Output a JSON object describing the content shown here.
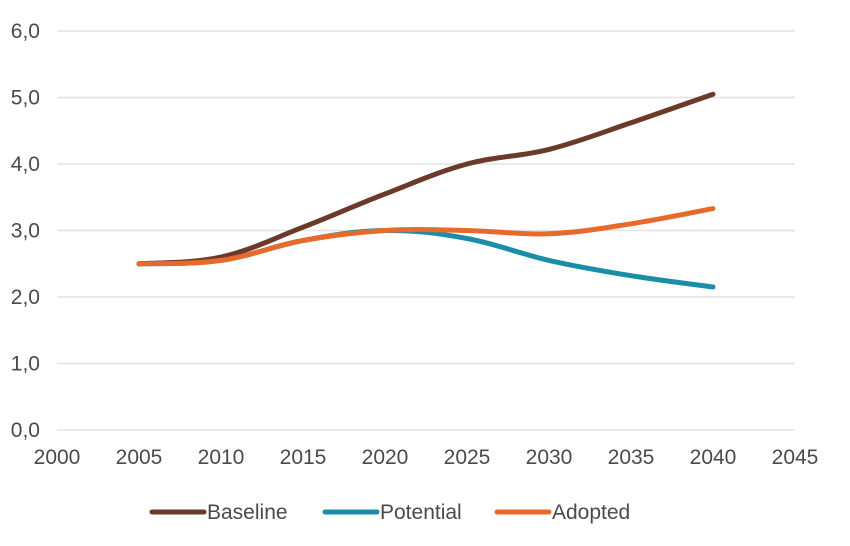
{
  "chart_data": {
    "type": "line",
    "title": "",
    "xlabel": "",
    "ylabel": "",
    "xlim": [
      2000,
      2045
    ],
    "ylim": [
      0,
      6
    ],
    "grid": true,
    "legend_position": "bottom",
    "x_ticks": [
      2000,
      2005,
      2010,
      2015,
      2020,
      2025,
      2030,
      2035,
      2040,
      2045
    ],
    "x_tick_labels": [
      "2000",
      "2005",
      "2010",
      "2015",
      "2020",
      "2025",
      "2030",
      "2035",
      "2040",
      "2045"
    ],
    "y_ticks": [
      0,
      1,
      2,
      3,
      4,
      5,
      6
    ],
    "y_tick_labels": [
      "0,0",
      "1,0",
      "2,0",
      "3,0",
      "4,0",
      "5,0",
      "6,0"
    ],
    "series": [
      {
        "name": "Baseline",
        "color": "#6b3a2a",
        "x": [
          2005,
          2010,
          2015,
          2020,
          2025,
          2030,
          2035,
          2040
        ],
        "values": [
          2.5,
          2.6,
          3.05,
          3.55,
          4.0,
          4.22,
          4.62,
          5.05
        ]
      },
      {
        "name": "Potential",
        "color": "#1a8ea6",
        "x": [
          2005,
          2010,
          2015,
          2020,
          2025,
          2030,
          2035,
          2040
        ],
        "values": [
          2.5,
          2.55,
          2.85,
          3.0,
          2.88,
          2.55,
          2.32,
          2.15
        ]
      },
      {
        "name": "Adopted",
        "color": "#e86a2b",
        "x": [
          2005,
          2010,
          2015,
          2020,
          2025,
          2030,
          2035,
          2040
        ],
        "values": [
          2.5,
          2.55,
          2.85,
          3.0,
          3.0,
          2.95,
          3.1,
          3.33
        ]
      }
    ]
  }
}
